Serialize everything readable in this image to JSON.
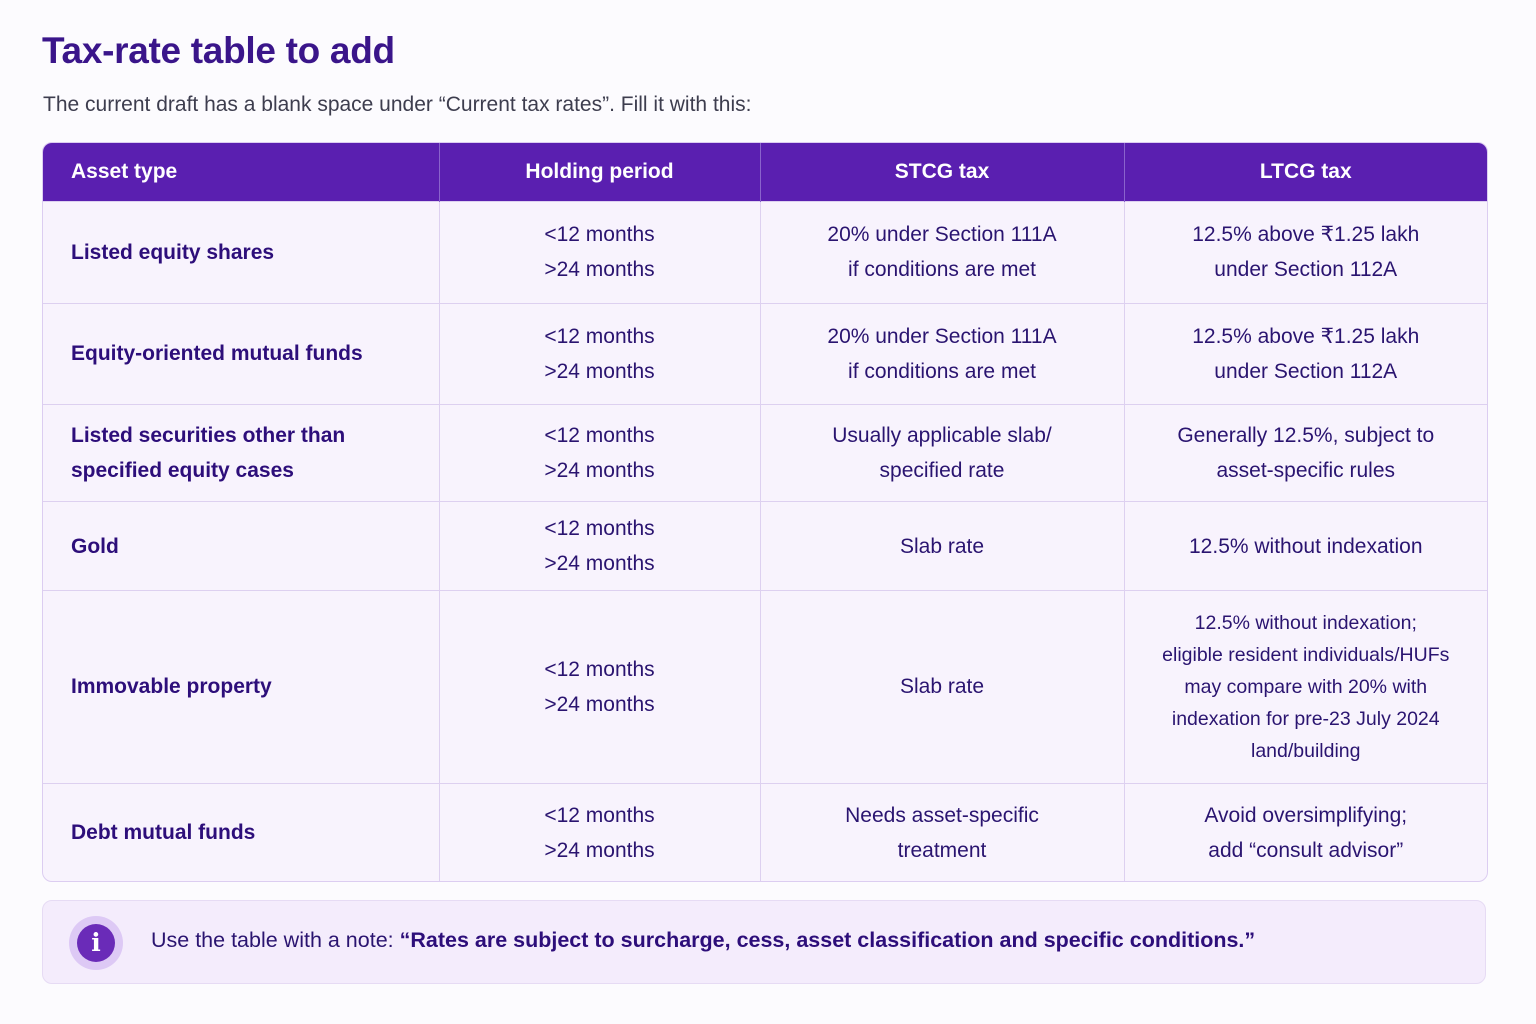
{
  "page": {
    "title": "Tax-rate table to add",
    "intro": "The current draft has a blank space under “Current tax rates”. Fill it with this:"
  },
  "table": {
    "headers": [
      "Asset type",
      "Holding period",
      "STCG tax",
      "LTCG tax"
    ],
    "rows": [
      {
        "asset": [
          "Listed equity shares"
        ],
        "holding": [
          "<12 months",
          ">24 months"
        ],
        "stcg": [
          "20% under Section 111A",
          "if conditions are met"
        ],
        "ltcg": [
          "12.5% above ₹1.25 lakh",
          "under Section 112A"
        ]
      },
      {
        "asset": [
          "Equity-oriented mutual funds"
        ],
        "holding": [
          "<12 months",
          ">24 months"
        ],
        "stcg": [
          "20% under Section 111A",
          "if conditions are met"
        ],
        "ltcg": [
          "12.5% above ₹1.25 lakh",
          "under Section 112A"
        ]
      },
      {
        "asset": [
          "Listed securities other than",
          "specified equity cases"
        ],
        "holding": [
          "<12 months",
          ">24 months"
        ],
        "stcg": [
          "Usually applicable slab/",
          "specified rate"
        ],
        "ltcg": [
          "Generally 12.5%, subject to",
          "asset-specific rules"
        ]
      },
      {
        "asset": [
          "Gold"
        ],
        "holding": [
          "<12 months",
          ">24 months"
        ],
        "stcg": [
          "Slab rate"
        ],
        "ltcg": [
          "12.5% without indexation"
        ]
      },
      {
        "asset": [
          "Immovable property"
        ],
        "holding": [
          "<12 months",
          ">24 months"
        ],
        "stcg": [
          "Slab rate"
        ],
        "ltcg": [
          "12.5% without indexation;",
          "eligible resident individuals/HUFs",
          "may compare with 20% with",
          "indexation for pre-23 July 2024",
          "land/building"
        ]
      },
      {
        "asset": [
          "Debt mutual funds"
        ],
        "holding": [
          "<12 months",
          ">24 months"
        ],
        "stcg": [
          "Needs asset-specific",
          "treatment"
        ],
        "ltcg": [
          "Avoid oversimplifying;",
          "add “consult advisor”"
        ]
      }
    ]
  },
  "note": {
    "icon": "info-icon",
    "prefix": "Use the table with a note:",
    "quote": "“Rates are subject to surcharge, cess, asset classification and specific conditions.”"
  },
  "colors": {
    "header_bg": "#5a1fb0",
    "title": "#3a158a",
    "accent": "#6a2bb8",
    "note_bg": "#f4ecfc"
  }
}
